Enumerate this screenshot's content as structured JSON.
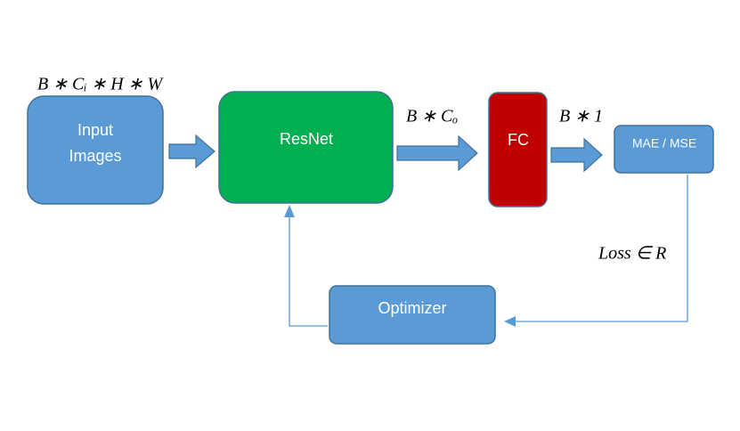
{
  "colors": {
    "blue_fill": "#5b9bd5",
    "blue_stroke": "#41719c",
    "green_fill": "#00b050",
    "green_stroke": "#41719c",
    "red_fill": "#c00000",
    "red_stroke": "#41719c",
    "line": "#5b9bd5",
    "text_light": "#ffffff",
    "text_dark": "#000000"
  },
  "nodes": {
    "input_images": {
      "line1": "Input",
      "line2": "Images"
    },
    "resnet": {
      "label": "ResNet"
    },
    "fc": {
      "label": "FC"
    },
    "loss_fn": {
      "label": "MAE / MSE"
    },
    "optimizer": {
      "label": "Optimizer"
    }
  },
  "edges": {
    "input_shape": "B ∗ Cᵢ ∗ H ∗ W",
    "resnet_output_shape": "B ∗ Cₒ",
    "fc_output_shape": "B ∗ 1",
    "loss_label": "Loss  ∈ R"
  }
}
